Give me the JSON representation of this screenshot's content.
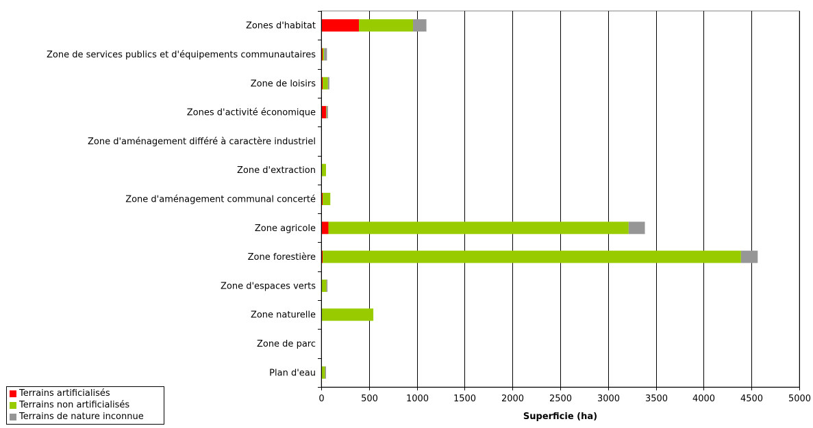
{
  "chart_data": {
    "type": "bar",
    "orientation": "horizontal",
    "stacked": true,
    "categories": [
      "Zones d'habitat",
      "Zone de services publics et d'équipements communautaires",
      "Zone de loisirs",
      "Zones d'activité économique",
      "Zone d'aménagement différé à caractère industriel",
      "Zone d'extraction",
      "Zone d'aménagement communal concerté",
      "Zone agricole",
      "Zone forestière",
      "Zone d'espaces verts",
      "Zone naturelle",
      "Zone de parc",
      "Plan d'eau"
    ],
    "series": [
      {
        "name": "Terrains artificialisés",
        "color": "#ff0000",
        "values": [
          395,
          15,
          15,
          50,
          0,
          0,
          15,
          75,
          15,
          0,
          0,
          0,
          0
        ]
      },
      {
        "name": "Terrains non artificialisés",
        "color": "#99cc00",
        "values": [
          565,
          15,
          55,
          5,
          0,
          50,
          80,
          3140,
          4375,
          55,
          545,
          0,
          40
        ]
      },
      {
        "name": "Terrains de nature inconnue",
        "color": "#969696",
        "values": [
          140,
          30,
          15,
          15,
          0,
          0,
          0,
          170,
          175,
          10,
          0,
          0,
          10
        ]
      }
    ],
    "xlabel": "Superficie (ha)",
    "ylabel": "",
    "xlim": [
      0,
      5000
    ],
    "xticks": [
      0,
      500,
      1000,
      1500,
      2000,
      2500,
      3000,
      3500,
      4000,
      4500,
      5000
    ],
    "grid": "vertical",
    "legend_position": "bottom-left"
  }
}
